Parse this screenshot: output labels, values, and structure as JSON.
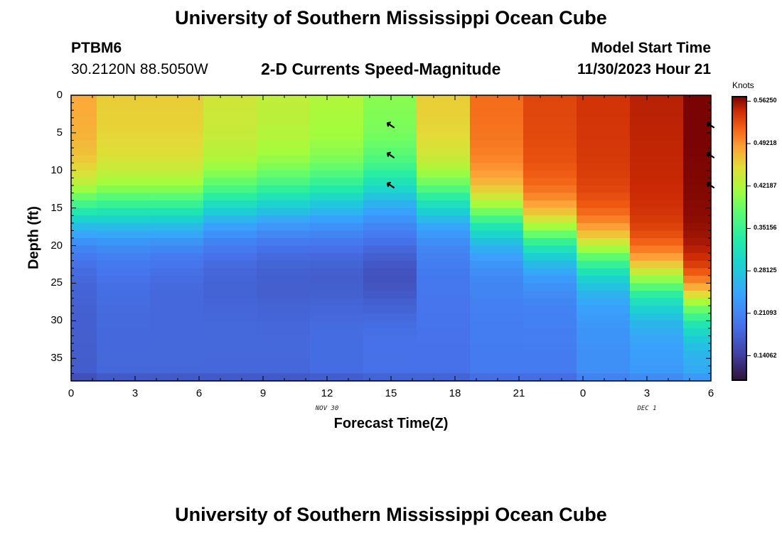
{
  "page": {
    "title": "University of Southern Mississippi Ocean Cube",
    "title_bottom": "University of Southern Mississippi Ocean Cube",
    "station_id": "PTBM6",
    "station_coords": "30.2120N  88.5050W",
    "product_title": "2-D Currents Speed-Magnitude",
    "model_start_label": "Model Start Time",
    "model_start_value": "11/30/2023 Hour 21"
  },
  "chart_data": {
    "type": "heatmap",
    "title": "2-D Currents Speed-Magnitude",
    "xlabel": "Forecast Time(Z)",
    "ylabel": "Depth (ft)",
    "colorbar_label": "Knots",
    "x_tick_labels": [
      "0",
      "3",
      "6",
      "9",
      "12",
      "15",
      "18",
      "21",
      "0",
      "3",
      "6"
    ],
    "x_date_labels": [
      {
        "label": "NOV 30",
        "at_tick": 4
      },
      {
        "label": "DEC 1",
        "at_tick": 9
      }
    ],
    "y_ticks": [
      0,
      5,
      10,
      15,
      20,
      25,
      30,
      35
    ],
    "ylim": [
      0,
      38
    ],
    "y_inverted": true,
    "colorbar_ticks": [
      "0.56250",
      "0.49218",
      "0.42187",
      "0.35156",
      "0.28125",
      "0.21093",
      "0.14062"
    ],
    "colorbar_range": [
      0.1,
      0.57
    ],
    "columns": [
      {
        "x_start": 0,
        "x_end": 1.2,
        "surface": 0.47,
        "trans_depth": 15.5,
        "deep": 0.17,
        "dip": 0.0
      },
      {
        "x_start": 1.2,
        "x_end": 3.7,
        "surface": 0.45,
        "trans_depth": 15.5,
        "deep": 0.18,
        "dip": 0.0
      },
      {
        "x_start": 3.7,
        "x_end": 6.2,
        "surface": 0.45,
        "trans_depth": 15.5,
        "deep": 0.18,
        "dip": 0.005
      },
      {
        "x_start": 6.2,
        "x_end": 8.7,
        "surface": 0.43,
        "trans_depth": 14.5,
        "deep": 0.18,
        "dip": 0.01
      },
      {
        "x_start": 8.7,
        "x_end": 11.2,
        "surface": 0.42,
        "trans_depth": 14.0,
        "deep": 0.18,
        "dip": 0.015
      },
      {
        "x_start": 11.2,
        "x_end": 13.7,
        "surface": 0.41,
        "trans_depth": 13.5,
        "deep": 0.185,
        "dip": 0.02
      },
      {
        "x_start": 13.7,
        "x_end": 16.2,
        "surface": 0.39,
        "trans_depth": 12.5,
        "deep": 0.19,
        "dip": 0.035
      },
      {
        "x_start": 16.2,
        "x_end": 18.7,
        "surface": 0.45,
        "trans_depth": 14.0,
        "deep": 0.19,
        "dip": 0.0
      },
      {
        "x_start": 18.7,
        "x_end": 21.2,
        "surface": 0.5,
        "trans_depth": 16.5,
        "deep": 0.2,
        "dip": 0.0
      },
      {
        "x_start": 21.2,
        "x_end": 23.7,
        "surface": 0.52,
        "trans_depth": 19.0,
        "deep": 0.2,
        "dip": 0.0
      },
      {
        "x_start": 23.7,
        "x_end": 26.2,
        "surface": 0.53,
        "trans_depth": 21.5,
        "deep": 0.22,
        "dip": 0.0
      },
      {
        "x_start": 26.2,
        "x_end": 28.7,
        "surface": 0.54,
        "trans_depth": 25.0,
        "deep": 0.23,
        "dip": 0.0
      },
      {
        "x_start": 28.7,
        "x_end": 30.0,
        "surface": 0.56,
        "trans_depth": 28.0,
        "deep": 0.24,
        "dip": 0.0
      }
    ],
    "arrows": [
      {
        "x": 15,
        "depth": 4
      },
      {
        "x": 15,
        "depth": 8
      },
      {
        "x": 15,
        "depth": 12
      },
      {
        "x": 30,
        "depth": 4
      },
      {
        "x": 30,
        "depth": 8
      },
      {
        "x": 30,
        "depth": 12
      }
    ]
  }
}
